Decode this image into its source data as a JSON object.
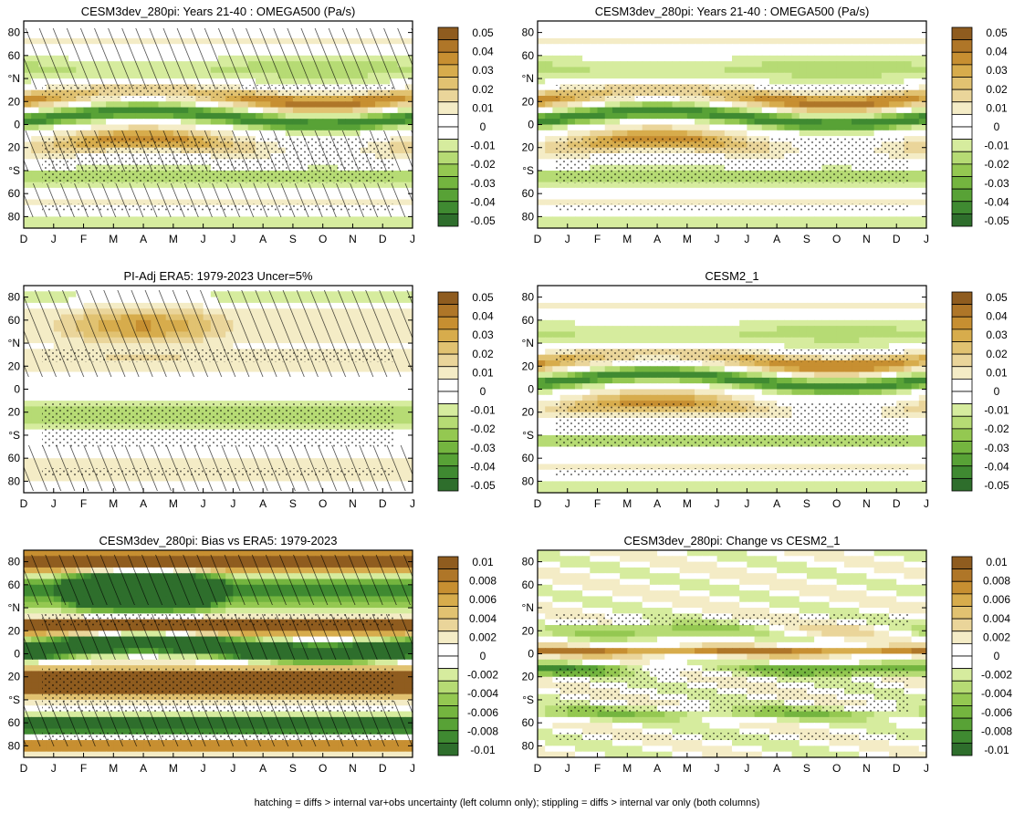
{
  "figure": {
    "footnote": "hatching = diffs > internal var+obs uncertainty (left column only); stippling = diffs > internal var only (both columns)"
  },
  "palette": {
    "neg": [
      "#2e6e2c",
      "#3f8a31",
      "#58a236",
      "#74b53f",
      "#94c851",
      "#b6db74",
      "#d6ec9e"
    ],
    "zero": "#ffffff",
    "pos": [
      "#f4ecc6",
      "#ead59a",
      "#e1c271",
      "#d7ac4c",
      "#c78f31",
      "#af7628",
      "#8f5c1f"
    ]
  },
  "chart_data": [
    {
      "id": "p1",
      "type": "heatmap",
      "title": "CESM3dev_280pi: Years 21-40 : OMEGA500 (Pa/s)",
      "x_tick_labels": [
        "D",
        "J",
        "F",
        "M",
        "A",
        "M",
        "J",
        "J",
        "A",
        "S",
        "O",
        "N",
        "D",
        "J"
      ],
      "y_tick_labels": [
        "80",
        "60",
        "°N",
        "20",
        "0",
        "20",
        "°S",
        "60",
        "80"
      ],
      "colorbar_labels": [
        "0.05",
        "0.04",
        "0.03",
        "0.02",
        "0.01",
        "0",
        "-0.01",
        "-0.02",
        "-0.03",
        "-0.04",
        "-0.05"
      ],
      "hatched": true,
      "stippled": true,
      "bias": false
    },
    {
      "id": "p2",
      "type": "heatmap",
      "title": "CESM3dev_280pi: Years 21-40 : OMEGA500 (Pa/s)",
      "x_tick_labels": [
        "D",
        "J",
        "F",
        "M",
        "A",
        "M",
        "J",
        "J",
        "A",
        "S",
        "O",
        "N",
        "D",
        "J"
      ],
      "y_tick_labels": [
        "80",
        "60",
        "°N",
        "20",
        "0",
        "20",
        "°S",
        "60",
        "80"
      ],
      "colorbar_labels": [
        "0.05",
        "0.04",
        "0.03",
        "0.02",
        "0.01",
        "0",
        "-0.01",
        "-0.02",
        "-0.03",
        "-0.04",
        "-0.05"
      ],
      "hatched": false,
      "stippled": true,
      "bias": false
    },
    {
      "id": "p3",
      "type": "heatmap",
      "title": "PI-Adj ERA5: 1979-2023 Uncer=5%",
      "x_tick_labels": [
        "D",
        "J",
        "F",
        "M",
        "A",
        "M",
        "J",
        "J",
        "A",
        "S",
        "O",
        "N",
        "D",
        "J"
      ],
      "y_tick_labels": [
        "80",
        "60",
        "°N",
        "20",
        "0",
        "20",
        "°S",
        "60",
        "80"
      ],
      "colorbar_labels": [
        "0.05",
        "0.04",
        "0.03",
        "0.02",
        "0.01",
        "0",
        "-0.01",
        "-0.02",
        "-0.03",
        "-0.04",
        "-0.05"
      ],
      "hatched": true,
      "stippled": true,
      "bias": false
    },
    {
      "id": "p4",
      "type": "heatmap",
      "title": "CESM2_1",
      "x_tick_labels": [
        "D",
        "J",
        "F",
        "M",
        "A",
        "M",
        "J",
        "J",
        "A",
        "S",
        "O",
        "N",
        "D",
        "J"
      ],
      "y_tick_labels": [
        "80",
        "60",
        "°N",
        "20",
        "0",
        "20",
        "°S",
        "60",
        "80"
      ],
      "colorbar_labels": [
        "0.05",
        "0.04",
        "0.03",
        "0.02",
        "0.01",
        "0",
        "-0.01",
        "-0.02",
        "-0.03",
        "-0.04",
        "-0.05"
      ],
      "hatched": false,
      "stippled": true,
      "bias": false
    },
    {
      "id": "p5",
      "type": "heatmap",
      "title": "CESM3dev_280pi: Bias vs ERA5: 1979-2023",
      "x_tick_labels": [
        "D",
        "J",
        "F",
        "M",
        "A",
        "M",
        "J",
        "J",
        "A",
        "S",
        "O",
        "N",
        "D",
        "J"
      ],
      "y_tick_labels": [
        "80",
        "60",
        "°N",
        "20",
        "0",
        "20",
        "°S",
        "60",
        "80"
      ],
      "colorbar_labels": [
        "0.01",
        "0.008",
        "0.006",
        "0.004",
        "0.002",
        "0",
        "-0.002",
        "-0.004",
        "-0.006",
        "-0.008",
        "-0.01"
      ],
      "hatched": true,
      "stippled": true,
      "bias": true
    },
    {
      "id": "p6",
      "type": "heatmap",
      "title": "CESM3dev_280pi: Change vs CESM2_1",
      "x_tick_labels": [
        "D",
        "J",
        "F",
        "M",
        "A",
        "M",
        "J",
        "J",
        "A",
        "S",
        "O",
        "N",
        "D",
        "J"
      ],
      "y_tick_labels": [
        "80",
        "60",
        "°N",
        "20",
        "0",
        "20",
        "°S",
        "60",
        "80"
      ],
      "colorbar_labels": [
        "0.01",
        "0.008",
        "0.006",
        "0.004",
        "0.002",
        "0",
        "-0.002",
        "-0.004",
        "-0.006",
        "-0.008",
        "-0.01"
      ],
      "hatched": false,
      "stippled": true,
      "bias": true
    }
  ]
}
